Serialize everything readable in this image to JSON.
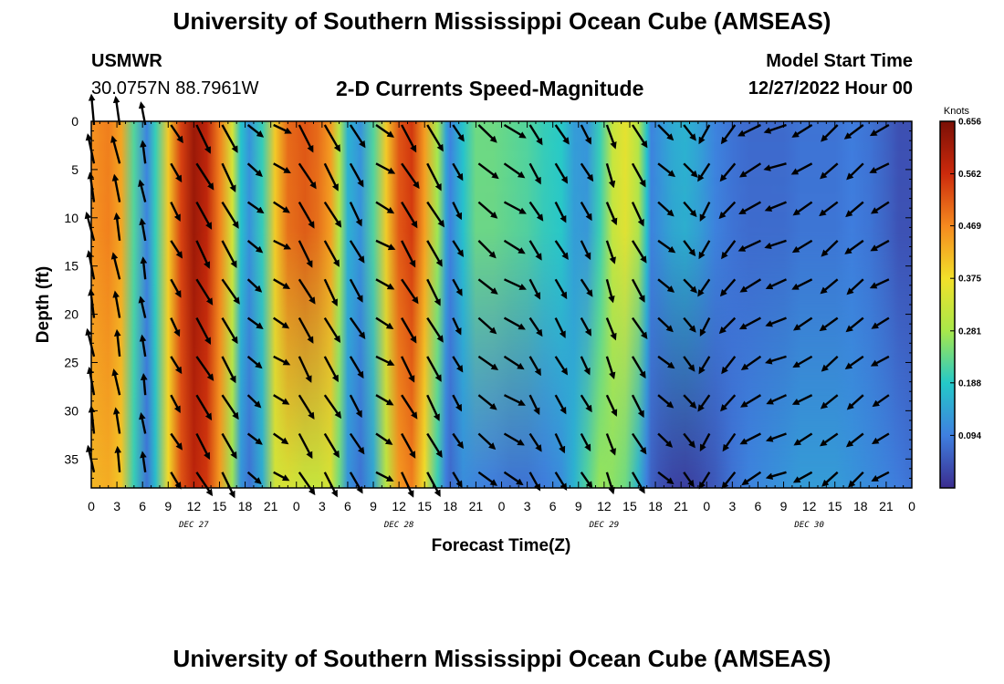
{
  "header": {
    "title": "University of Southern Mississippi Ocean Cube (AMSEAS)",
    "station": "USMWR",
    "coords": "30.0757N  88.7961W",
    "chart_title": "2-D Currents Speed-Magnitude",
    "model_start_label": "Model Start Time",
    "model_start_value": "12/27/2022 Hour 00"
  },
  "footer": {
    "title": "University of Southern Mississippi Ocean Cube (AMSEAS)"
  },
  "colors": {
    "colormap": [
      "#3b2d8f",
      "#3f7fe0",
      "#24c9c9",
      "#a8e84a",
      "#f2e02a",
      "#f58a1f",
      "#cc2a0c",
      "#7a0f06"
    ],
    "arrow": "#000000",
    "axis": "#000000"
  },
  "chart_data": {
    "type": "heatmap",
    "title": "2-D Currents Speed-Magnitude",
    "xlabel": "Forecast Time(Z)",
    "ylabel": "Depth (ft)",
    "xlim": [
      0,
      96
    ],
    "ylim": [
      0,
      38
    ],
    "y_inverted": true,
    "x_ticks": [
      0,
      3,
      6,
      9,
      12,
      15,
      18,
      21,
      24,
      27,
      30,
      33,
      36,
      39,
      42,
      45,
      48,
      51,
      54,
      57,
      60,
      63,
      66,
      69,
      72,
      75,
      78,
      81,
      84,
      87,
      90,
      93,
      96
    ],
    "x_tick_labels": [
      "0",
      "3",
      "6",
      "9",
      "12",
      "15",
      "18",
      "21",
      "0",
      "3",
      "6",
      "9",
      "12",
      "15",
      "18",
      "21",
      "0",
      "3",
      "6",
      "9",
      "12",
      "15",
      "18",
      "21",
      "0",
      "3",
      "6",
      "9",
      "12",
      "15",
      "18",
      "21",
      "0"
    ],
    "y_ticks": [
      0,
      5,
      10,
      15,
      20,
      25,
      30,
      35
    ],
    "y_tick_labels": [
      "0",
      "5",
      "10",
      "15",
      "20",
      "25",
      "30",
      "35"
    ],
    "day_labels": [
      {
        "text": "DEC 27",
        "hour": 12
      },
      {
        "text": "DEC 28",
        "hour": 36
      },
      {
        "text": "DEC 29",
        "hour": 60
      },
      {
        "text": "DEC 30",
        "hour": 84
      }
    ],
    "colorbar": {
      "label": "Knots",
      "min": 0.0,
      "max": 0.656,
      "ticks": [
        0.094,
        0.188,
        0.281,
        0.375,
        0.469,
        0.562,
        0.656
      ],
      "tick_labels": [
        "0.094",
        "0.188",
        "0.281",
        "0.375",
        "0.469",
        "0.562",
        "0.656"
      ]
    },
    "speed_profile": {
      "hours": [
        0,
        2,
        3.5,
        5,
        6.5,
        7.5,
        9,
        10.5,
        12,
        13.5,
        15,
        16.5,
        17.5,
        18.5,
        20,
        21.5,
        23,
        25,
        26.5,
        28,
        29,
        30,
        31.5,
        33,
        34.5,
        36,
        37.5,
        39,
        40.5,
        41.5,
        42,
        43.5,
        45,
        47,
        49,
        51,
        53,
        55,
        56.5,
        58,
        59.5,
        61,
        62.5,
        64,
        65,
        65.5,
        66.5,
        68,
        69.5,
        71,
        73,
        75,
        77,
        79,
        81,
        83,
        85,
        87,
        89,
        91,
        93,
        94.5,
        96
      ],
      "surface_knots": [
        0.46,
        0.48,
        0.44,
        0.22,
        0.1,
        0.2,
        0.4,
        0.54,
        0.62,
        0.58,
        0.48,
        0.34,
        0.18,
        0.12,
        0.2,
        0.4,
        0.5,
        0.52,
        0.5,
        0.45,
        0.3,
        0.16,
        0.12,
        0.22,
        0.4,
        0.52,
        0.55,
        0.45,
        0.28,
        0.14,
        0.1,
        0.18,
        0.24,
        0.24,
        0.23,
        0.22,
        0.2,
        0.19,
        0.13,
        0.12,
        0.2,
        0.32,
        0.36,
        0.3,
        0.18,
        0.1,
        0.12,
        0.15,
        0.16,
        0.14,
        0.1,
        0.08,
        0.07,
        0.07,
        0.07,
        0.08,
        0.08,
        0.08,
        0.09,
        0.08,
        0.06,
        0.04,
        0.04
      ],
      "bottom_knots": [
        0.42,
        0.43,
        0.4,
        0.2,
        0.08,
        0.17,
        0.38,
        0.52,
        0.58,
        0.55,
        0.45,
        0.27,
        0.12,
        0.08,
        0.15,
        0.33,
        0.34,
        0.32,
        0.32,
        0.34,
        0.24,
        0.12,
        0.08,
        0.14,
        0.3,
        0.45,
        0.48,
        0.37,
        0.2,
        0.09,
        0.07,
        0.11,
        0.1,
        0.09,
        0.08,
        0.08,
        0.09,
        0.11,
        0.16,
        0.22,
        0.27,
        0.26,
        0.24,
        0.16,
        0.09,
        0.06,
        0.04,
        0.025,
        0.02,
        0.03,
        0.05,
        0.08,
        0.1,
        0.11,
        0.12,
        0.13,
        0.13,
        0.13,
        0.12,
        0.11,
        0.1,
        0.09,
        0.08
      ]
    },
    "arrow_field": {
      "hours": [
        0,
        3,
        6,
        9,
        12,
        15,
        18,
        21,
        24,
        27,
        30,
        33,
        36,
        39,
        42,
        45,
        48,
        51,
        54,
        57,
        60,
        63,
        66,
        69,
        72,
        75,
        78,
        81,
        84,
        87,
        90,
        93
      ],
      "depths_ft": [
        0,
        4,
        8,
        12,
        16,
        20,
        24,
        28,
        32,
        36
      ],
      "direction_deg": [
        100,
        100,
        100,
        300,
        300,
        300,
        320,
        330,
        300,
        300,
        300,
        330,
        300,
        300,
        300,
        320,
        330,
        300,
        300,
        300,
        290,
        300,
        320,
        310,
        240,
        230,
        210,
        200,
        210,
        220,
        220,
        210
      ],
      "length_px": [
        32,
        30,
        24,
        22,
        33,
        33,
        20,
        20,
        32,
        32,
        28,
        22,
        32,
        32,
        20,
        26,
        26,
        24,
        24,
        22,
        26,
        28,
        22,
        20,
        22,
        24,
        26,
        24,
        24,
        24,
        24,
        22
      ]
    }
  }
}
